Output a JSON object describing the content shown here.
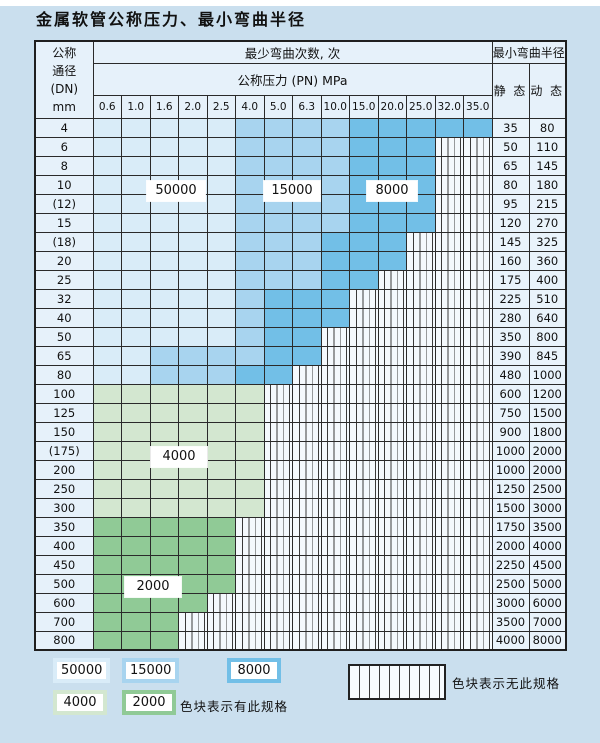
{
  "title": "金属软管公称压力、最小弯曲半径",
  "colors": {
    "c50000": "#d9ecf8",
    "c15000": "#a8d4ef",
    "c8000": "#72bfe7",
    "c4000": "#d3e7d0",
    "c2000": "#90ca96",
    "grid": "#2a2a2a",
    "page_bg": "#cadfee",
    "header_bg": "#e6f1fa"
  },
  "table": {
    "dn_header_lines": [
      "公称",
      "通径",
      "(DN)",
      "mm"
    ],
    "cycles_header": "最少弯曲次数, 次",
    "pressure_header": "公称压力 (PN) MPa",
    "radius_header": "最小弯曲半径",
    "static_header": "静 态",
    "dynamic_header": "动 态",
    "pressure_values": [
      "0.6",
      "1.0",
      "1.6",
      "2.0",
      "2.5",
      "4.0",
      "5.0",
      "6.3",
      "10.0",
      "15.0",
      "20.0",
      "25.0",
      "32.0",
      "35.0"
    ],
    "rows": [
      {
        "dn": "4",
        "bands": [
          [
            "c50000",
            5
          ],
          [
            "c15000",
            4
          ],
          [
            "c8000",
            5
          ]
        ],
        "static": "35",
        "dynamic": "80"
      },
      {
        "dn": "6",
        "bands": [
          [
            "c50000",
            5
          ],
          [
            "c15000",
            4
          ],
          [
            "c8000",
            3
          ]
        ],
        "static": "50",
        "dynamic": "110"
      },
      {
        "dn": "8",
        "bands": [
          [
            "c50000",
            5
          ],
          [
            "c15000",
            4
          ],
          [
            "c8000",
            3
          ]
        ],
        "static": "65",
        "dynamic": "145"
      },
      {
        "dn": "10",
        "bands": [
          [
            "c50000",
            5
          ],
          [
            "c15000",
            4
          ],
          [
            "c8000",
            3
          ]
        ],
        "static": "80",
        "dynamic": "180"
      },
      {
        "dn": "(12)",
        "bands": [
          [
            "c50000",
            5
          ],
          [
            "c15000",
            4
          ],
          [
            "c8000",
            3
          ]
        ],
        "static": "95",
        "dynamic": "215"
      },
      {
        "dn": "15",
        "bands": [
          [
            "c50000",
            5
          ],
          [
            "c15000",
            4
          ],
          [
            "c8000",
            3
          ]
        ],
        "static": "120",
        "dynamic": "270"
      },
      {
        "dn": "(18)",
        "bands": [
          [
            "c50000",
            5
          ],
          [
            "c15000",
            3
          ],
          [
            "c8000",
            3
          ]
        ],
        "static": "145",
        "dynamic": "325"
      },
      {
        "dn": "20",
        "bands": [
          [
            "c50000",
            5
          ],
          [
            "c15000",
            3
          ],
          [
            "c8000",
            3
          ]
        ],
        "static": "160",
        "dynamic": "360"
      },
      {
        "dn": "25",
        "bands": [
          [
            "c50000",
            5
          ],
          [
            "c15000",
            3
          ],
          [
            "c8000",
            2
          ]
        ],
        "static": "175",
        "dynamic": "400"
      },
      {
        "dn": "32",
        "bands": [
          [
            "c50000",
            5
          ],
          [
            "c15000",
            1
          ],
          [
            "c8000",
            3
          ]
        ],
        "static": "225",
        "dynamic": "510"
      },
      {
        "dn": "40",
        "bands": [
          [
            "c50000",
            5
          ],
          [
            "c15000",
            1
          ],
          [
            "c8000",
            3
          ]
        ],
        "static": "280",
        "dynamic": "640"
      },
      {
        "dn": "50",
        "bands": [
          [
            "c50000",
            5
          ],
          [
            "c15000",
            1
          ],
          [
            "c8000",
            2
          ]
        ],
        "static": "350",
        "dynamic": "800"
      },
      {
        "dn": "65",
        "bands": [
          [
            "c50000",
            2
          ],
          [
            "c15000",
            4
          ],
          [
            "c8000",
            2
          ]
        ],
        "static": "390",
        "dynamic": "845"
      },
      {
        "dn": "80",
        "bands": [
          [
            "c50000",
            2
          ],
          [
            "c15000",
            3
          ],
          [
            "c8000",
            2
          ]
        ],
        "static": "480",
        "dynamic": "1000"
      },
      {
        "dn": "100",
        "bands": [
          [
            "c4000",
            6
          ]
        ],
        "static": "600",
        "dynamic": "1200"
      },
      {
        "dn": "125",
        "bands": [
          [
            "c4000",
            6
          ]
        ],
        "static": "750",
        "dynamic": "1500"
      },
      {
        "dn": "150",
        "bands": [
          [
            "c4000",
            6
          ]
        ],
        "static": "900",
        "dynamic": "1800"
      },
      {
        "dn": "(175)",
        "bands": [
          [
            "c4000",
            6
          ]
        ],
        "static": "1000",
        "dynamic": "2000"
      },
      {
        "dn": "200",
        "bands": [
          [
            "c4000",
            6
          ]
        ],
        "static": "1000",
        "dynamic": "2000"
      },
      {
        "dn": "250",
        "bands": [
          [
            "c4000",
            6
          ]
        ],
        "static": "1250",
        "dynamic": "2500"
      },
      {
        "dn": "300",
        "bands": [
          [
            "c4000",
            6
          ]
        ],
        "static": "1500",
        "dynamic": "3000"
      },
      {
        "dn": "350",
        "bands": [
          [
            "c2000",
            5
          ]
        ],
        "static": "1750",
        "dynamic": "3500"
      },
      {
        "dn": "400",
        "bands": [
          [
            "c2000",
            5
          ]
        ],
        "static": "2000",
        "dynamic": "4000"
      },
      {
        "dn": "450",
        "bands": [
          [
            "c2000",
            5
          ]
        ],
        "static": "2250",
        "dynamic": "4500"
      },
      {
        "dn": "500",
        "bands": [
          [
            "c2000",
            5
          ]
        ],
        "static": "2500",
        "dynamic": "5000"
      },
      {
        "dn": "600",
        "bands": [
          [
            "c2000",
            4
          ]
        ],
        "static": "3000",
        "dynamic": "6000"
      },
      {
        "dn": "700",
        "bands": [
          [
            "c2000",
            3
          ]
        ],
        "static": "3500",
        "dynamic": "7000"
      },
      {
        "dn": "800",
        "bands": [
          [
            "c2000",
            3
          ]
        ],
        "static": "4000",
        "dynamic": "8000"
      }
    ]
  },
  "overlay_labels": [
    "50000",
    "15000",
    "8000",
    "4000",
    "2000"
  ],
  "legend": {
    "chips": [
      {
        "label": "50000",
        "color_key": "c50000"
      },
      {
        "label": "15000",
        "color_key": "c15000"
      },
      {
        "label": "8000",
        "color_key": "c8000"
      },
      {
        "label": "4000",
        "color_key": "c4000"
      },
      {
        "label": "2000",
        "color_key": "c2000"
      }
    ],
    "no_spec_note": "色块表示无此规格",
    "has_spec_note": "色块表示有此规格"
  }
}
